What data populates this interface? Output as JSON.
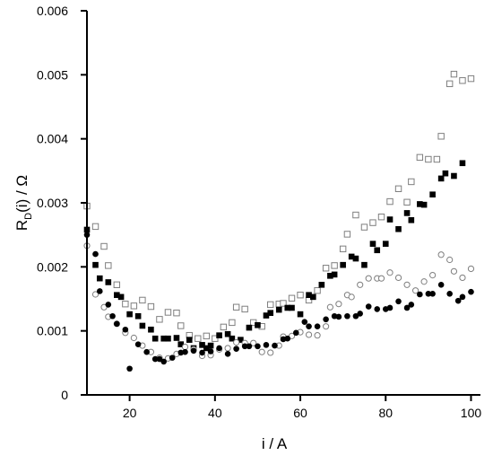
{
  "chart_data": {
    "type": "scatter",
    "title": "",
    "xlabel": "i / A",
    "ylabel_main": "R",
    "ylabel_sub": "D",
    "ylabel_rest": "(i) / Ω",
    "xlim": [
      10,
      102
    ],
    "ylim": [
      0,
      0.006
    ],
    "x_ticks": [
      20,
      40,
      60,
      80,
      100
    ],
    "x_tick_labels": [
      "20",
      "40",
      "60",
      "80",
      "100"
    ],
    "y_ticks": [
      0,
      0.001,
      0.002,
      0.003,
      0.004,
      0.005,
      0.006
    ],
    "y_tick_labels": [
      "0",
      "0.001",
      "0.002",
      "0.003",
      "0.004",
      "0.005",
      "0.006"
    ],
    "grid": false,
    "colors": {
      "filled": "#000000",
      "open": "#7f7f7f"
    },
    "series": [
      {
        "marker": "open-square",
        "points": [
          [
            10,
            0.00295
          ],
          [
            12,
            0.00263
          ],
          [
            14,
            0.00232
          ],
          [
            15,
            0.00202
          ],
          [
            17,
            0.00172
          ],
          [
            19,
            0.00142
          ],
          [
            21,
            0.00139
          ],
          [
            23,
            0.00148
          ],
          [
            25,
            0.00138
          ],
          [
            27,
            0.00118
          ],
          [
            29,
            0.00129
          ],
          [
            31,
            0.00128
          ],
          [
            32,
            0.00108
          ],
          [
            34,
            0.00093
          ],
          [
            36,
            0.00088
          ],
          [
            38,
            0.00092
          ],
          [
            40,
            0.00088
          ],
          [
            42,
            0.00106
          ],
          [
            44,
            0.00113
          ],
          [
            45,
            0.00137
          ],
          [
            47,
            0.00134
          ],
          [
            49,
            0.00113
          ],
          [
            51,
            0.00107
          ],
          [
            53,
            0.00141
          ],
          [
            55,
            0.00142
          ],
          [
            56,
            0.00143
          ],
          [
            58,
            0.00151
          ],
          [
            60,
            0.00156
          ],
          [
            62,
            0.00148
          ],
          [
            64,
            0.00163
          ],
          [
            66,
            0.00198
          ],
          [
            68,
            0.00202
          ],
          [
            70,
            0.00228
          ],
          [
            71,
            0.00251
          ],
          [
            73,
            0.00281
          ],
          [
            75,
            0.00262
          ],
          [
            77,
            0.00269
          ],
          [
            79,
            0.00278
          ],
          [
            81,
            0.00302
          ],
          [
            83,
            0.00322
          ],
          [
            85,
            0.00301
          ],
          [
            86,
            0.00333
          ],
          [
            88,
            0.00371
          ],
          [
            90,
            0.00368
          ],
          [
            92,
            0.00368
          ],
          [
            93,
            0.00404
          ],
          [
            95,
            0.00486
          ],
          [
            96,
            0.00501
          ],
          [
            98,
            0.00491
          ],
          [
            100,
            0.00494
          ]
        ]
      },
      {
        "marker": "filled-square",
        "points": [
          [
            10,
            0.00258
          ],
          [
            12,
            0.00203
          ],
          [
            13,
            0.00182
          ],
          [
            15,
            0.00176
          ],
          [
            17,
            0.00156
          ],
          [
            18,
            0.00153
          ],
          [
            20,
            0.00126
          ],
          [
            22,
            0.00123
          ],
          [
            23,
            0.00108
          ],
          [
            25,
            0.00102
          ],
          [
            26,
            0.00088
          ],
          [
            28,
            0.00088
          ],
          [
            29,
            0.00088
          ],
          [
            31,
            0.00089
          ],
          [
            32,
            0.00079
          ],
          [
            34,
            0.00086
          ],
          [
            35,
            0.00073
          ],
          [
            37,
            0.00078
          ],
          [
            38,
            0.00073
          ],
          [
            39,
            0.00077
          ],
          [
            41,
            0.00093
          ],
          [
            43,
            0.00095
          ],
          [
            44,
            0.00088
          ],
          [
            46,
            0.00086
          ],
          [
            48,
            0.00105
          ],
          [
            50,
            0.00109
          ],
          [
            52,
            0.00124
          ],
          [
            53,
            0.00128
          ],
          [
            55,
            0.00133
          ],
          [
            57,
            0.00136
          ],
          [
            58,
            0.00136
          ],
          [
            60,
            0.00126
          ],
          [
            62,
            0.00156
          ],
          [
            63,
            0.00153
          ],
          [
            65,
            0.00172
          ],
          [
            67,
            0.00186
          ],
          [
            68,
            0.00188
          ],
          [
            70,
            0.00203
          ],
          [
            72,
            0.00216
          ],
          [
            73,
            0.00213
          ],
          [
            75,
            0.00203
          ],
          [
            77,
            0.00236
          ],
          [
            78,
            0.00226
          ],
          [
            80,
            0.00236
          ],
          [
            81,
            0.00274
          ],
          [
            83,
            0.00259
          ],
          [
            85,
            0.00284
          ],
          [
            86,
            0.00273
          ],
          [
            88,
            0.00298
          ],
          [
            89,
            0.00297
          ],
          [
            91,
            0.00313
          ],
          [
            93,
            0.00338
          ],
          [
            94,
            0.00346
          ],
          [
            96,
            0.00342
          ],
          [
            98,
            0.00362
          ]
        ]
      },
      {
        "marker": "open-circle",
        "points": [
          [
            10,
            0.00233
          ],
          [
            12,
            0.00157
          ],
          [
            14,
            0.00137
          ],
          [
            15,
            0.00122
          ],
          [
            17,
            0.00111
          ],
          [
            19,
            0.00097
          ],
          [
            21,
            0.00089
          ],
          [
            23,
            0.00077
          ],
          [
            25,
            0.00067
          ],
          [
            27,
            0.00058
          ],
          [
            29,
            0.00057
          ],
          [
            31,
            0.00064
          ],
          [
            33,
            0.00075
          ],
          [
            35,
            0.00071
          ],
          [
            37,
            0.00061
          ],
          [
            39,
            0.00062
          ],
          [
            41,
            0.00071
          ],
          [
            43,
            0.00073
          ],
          [
            45,
            0.00082
          ],
          [
            47,
            0.00081
          ],
          [
            49,
            0.00081
          ],
          [
            51,
            0.00067
          ],
          [
            53,
            0.00066
          ],
          [
            55,
            0.00077
          ],
          [
            56,
            0.00091
          ],
          [
            58,
            0.00092
          ],
          [
            60,
            0.00098
          ],
          [
            62,
            0.00094
          ],
          [
            64,
            0.00093
          ],
          [
            66,
            0.00107
          ],
          [
            67,
            0.00137
          ],
          [
            69,
            0.00142
          ],
          [
            71,
            0.00156
          ],
          [
            72,
            0.00153
          ],
          [
            74,
            0.00172
          ],
          [
            76,
            0.00182
          ],
          [
            78,
            0.00182
          ],
          [
            79,
            0.00182
          ],
          [
            81,
            0.00191
          ],
          [
            83,
            0.00183
          ],
          [
            85,
            0.00172
          ],
          [
            87,
            0.00163
          ],
          [
            89,
            0.00177
          ],
          [
            91,
            0.00187
          ],
          [
            93,
            0.00219
          ],
          [
            95,
            0.00211
          ],
          [
            96,
            0.00193
          ],
          [
            98,
            0.00183
          ],
          [
            100,
            0.00197
          ]
        ]
      },
      {
        "marker": "filled-circle",
        "points": [
          [
            10,
            0.0025
          ],
          [
            12,
            0.0022
          ],
          [
            13,
            0.00162
          ],
          [
            15,
            0.00141
          ],
          [
            16,
            0.00123
          ],
          [
            17,
            0.00111
          ],
          [
            19,
            0.00102
          ],
          [
            20,
            0.00041
          ],
          [
            22,
            0.00079
          ],
          [
            24,
            0.00067
          ],
          [
            26,
            0.00056
          ],
          [
            27,
            0.00056
          ],
          [
            28,
            0.00052
          ],
          [
            30,
            0.00058
          ],
          [
            32,
            0.00066
          ],
          [
            33,
            0.00067
          ],
          [
            35,
            0.00069
          ],
          [
            37,
            0.00066
          ],
          [
            39,
            0.00068
          ],
          [
            41,
            0.00073
          ],
          [
            43,
            0.00064
          ],
          [
            45,
            0.00072
          ],
          [
            47,
            0.00076
          ],
          [
            48,
            0.00076
          ],
          [
            50,
            0.00076
          ],
          [
            52,
            0.00078
          ],
          [
            54,
            0.00077
          ],
          [
            56,
            0.00087
          ],
          [
            57,
            0.00088
          ],
          [
            59,
            0.00097
          ],
          [
            61,
            0.00114
          ],
          [
            62,
            0.00107
          ],
          [
            64,
            0.00107
          ],
          [
            66,
            0.00118
          ],
          [
            68,
            0.00123
          ],
          [
            69,
            0.00122
          ],
          [
            71,
            0.00123
          ],
          [
            73,
            0.00123
          ],
          [
            74,
            0.00127
          ],
          [
            76,
            0.00138
          ],
          [
            78,
            0.00134
          ],
          [
            80,
            0.00134
          ],
          [
            81,
            0.00136
          ],
          [
            83,
            0.00146
          ],
          [
            85,
            0.00136
          ],
          [
            86,
            0.00141
          ],
          [
            88,
            0.00157
          ],
          [
            90,
            0.00158
          ],
          [
            91,
            0.00158
          ],
          [
            93,
            0.00172
          ],
          [
            95,
            0.00158
          ],
          [
            97,
            0.00147
          ],
          [
            98,
            0.00153
          ],
          [
            100,
            0.00161
          ]
        ]
      }
    ]
  }
}
